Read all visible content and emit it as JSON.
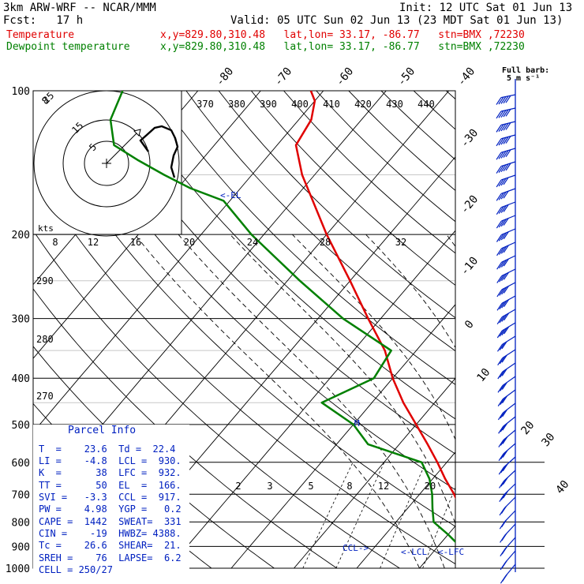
{
  "header": {
    "model": "3km ARW-WRF -- NCAR/MMM",
    "init": "Init: 12 UTC Sat 01 Jun 13",
    "fcst": "Fcst:   17 h",
    "valid": "Valid: 05 UTC Sun 02 Jun 13 (23 MDT Sat 01 Jun 13)",
    "temp_label": "Temperature",
    "temp_loc": "x,y=829.80,310.48   lat,lon= 33.17, -86.77   stn=BMX ,72230",
    "dew_label": "Dewpoint temperature",
    "dew_loc": "x,y=829.80,310.48   lat,lon= 33.17, -86.77   stn=BMX ,72230"
  },
  "colors": {
    "temperature": "#e00000",
    "dewpoint": "#008000",
    "labels": "#0020c0",
    "hodograph": "#000000"
  },
  "barb_legend": {
    "title": "Full barb:",
    "value": "5 m s⁻¹"
  },
  "parcel_info": {
    "title": "Parcel Info",
    "rows": [
      "T  =    23.6  Td =  22.4",
      "LI =    -4.8  LCL =  930.",
      "K  =      38  LFC =  932.",
      "TT =      50  EL  =  166.",
      "SVI =   -3.3  CCL =  917.",
      "PW =    4.98  YGP =   0.2",
      "CAPE =  1442  SWEAT=  331",
      "CIN =    -19  HWBZ= 4388.",
      "Tc =    26.6  SHEAR=  21.",
      "SREH =    76  LAPSE=  6.2",
      "CELL = 250/27"
    ]
  },
  "annotations": {
    "el": "<-EL",
    "ccl": "CCL->",
    "lcl": "<-LCL",
    "lfc": "<-LFC",
    "m": "M",
    "kts": "kts"
  },
  "chart_data": {
    "type": "line",
    "title": "",
    "xlabel": "",
    "ylabel": "",
    "y_scale": "log-pressure",
    "y_ticks_hPa": [
      100,
      200,
      300,
      400,
      500,
      600,
      700,
      800,
      900,
      1000
    ],
    "isotherm_labels_C": [
      "-80",
      "-70",
      "-60",
      "-50",
      "-40",
      "-30",
      "-20",
      "-10",
      "0",
      "10",
      "20",
      "30",
      "40"
    ],
    "theta_labels_K": [
      "370",
      "380",
      "390",
      "400",
      "410",
      "420",
      "430",
      "440"
    ],
    "theta_side_labels_K": [
      "290",
      "280",
      "270"
    ],
    "mixing_ratio_labels": [
      "2",
      "3",
      "5",
      "8",
      "12",
      "20"
    ],
    "hodo_speed_labels": [
      "8",
      "12",
      "16",
      "20",
      "24",
      "28",
      "32"
    ],
    "hodo_ring_labels": [
      "5",
      "15",
      "25"
    ],
    "series": [
      {
        "name": "Temperature",
        "points": [
          [
            1000,
            24.5
          ],
          [
            975,
            22.5
          ],
          [
            950,
            20.5
          ],
          [
            925,
            18.8
          ],
          [
            900,
            17
          ],
          [
            875,
            15.5
          ],
          [
            850,
            14
          ],
          [
            800,
            11.5
          ],
          [
            750,
            8.5
          ],
          [
            700,
            5.5
          ],
          [
            650,
            2.0
          ],
          [
            600,
            -1.5
          ],
          [
            550,
            -5.5
          ],
          [
            500,
            -10
          ],
          [
            450,
            -15
          ],
          [
            400,
            -20
          ],
          [
            350,
            -25
          ],
          [
            300,
            -32
          ],
          [
            250,
            -40
          ],
          [
            200,
            -50
          ],
          [
            150,
            -62
          ],
          [
            130,
            -67
          ],
          [
            115,
            -68
          ],
          [
            105,
            -70
          ],
          [
            100,
            -72
          ]
        ]
      },
      {
        "name": "Dewpoint temperature",
        "points": [
          [
            1000,
            22
          ],
          [
            975,
            21.5
          ],
          [
            950,
            20.5
          ],
          [
            925,
            17.5
          ],
          [
            900,
            13.5
          ],
          [
            850,
            10
          ],
          [
            800,
            6
          ],
          [
            750,
            4
          ],
          [
            700,
            2.0
          ],
          [
            650,
            -0.5
          ],
          [
            600,
            -4
          ],
          [
            550,
            -15
          ],
          [
            500,
            -20
          ],
          [
            450,
            -28
          ],
          [
            400,
            -23
          ],
          [
            350,
            -24
          ],
          [
            300,
            -36
          ],
          [
            250,
            -48
          ],
          [
            200,
            -62
          ],
          [
            170,
            -71
          ],
          [
            160,
            -78
          ],
          [
            150,
            -84
          ],
          [
            140,
            -90
          ],
          [
            130,
            -96
          ],
          [
            115,
            -100
          ],
          [
            100,
            -102
          ]
        ]
      }
    ]
  }
}
